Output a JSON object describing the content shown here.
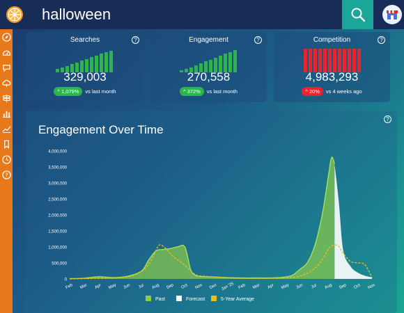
{
  "search": {
    "query": "halloween"
  },
  "icons": {
    "logo": "orange-slice-icon",
    "search": "magnifier-icon",
    "store": "storefront-icon",
    "sidebar": [
      "compass-icon",
      "gauge-icon",
      "chat-bubble-icon",
      "cloud-icon",
      "signpost-icon",
      "bar-chart-icon",
      "line-chart-icon",
      "bookmark-icon",
      "clock-icon",
      "help-icon"
    ]
  },
  "cards": [
    {
      "title": "Searches",
      "value": "329,003",
      "badge": "1,079%",
      "badge_dir": "up",
      "comparison": "vs last month",
      "bar_color": "#2eb54a",
      "bars": [
        0.14,
        0.2,
        0.27,
        0.34,
        0.42,
        0.49,
        0.57,
        0.64,
        0.71,
        0.78,
        0.86,
        0.92
      ]
    },
    {
      "title": "Engagement",
      "value": "270,558",
      "badge": "372%",
      "badge_dir": "up",
      "comparison": "vs last month",
      "bar_color": "#2eb54a",
      "bars": [
        0.1,
        0.16,
        0.22,
        0.3,
        0.38,
        0.46,
        0.54,
        0.62,
        0.7,
        0.78,
        0.86,
        0.94
      ]
    },
    {
      "title": "Competition",
      "value": "4,983,293",
      "badge": "20%",
      "badge_dir": "down",
      "comparison": "vs 4 weeks ago",
      "bar_color": "#e8242d",
      "bars": [
        1,
        1,
        1,
        1,
        1,
        1,
        1,
        1,
        1,
        1,
        1,
        1
      ]
    }
  ],
  "chart_data": {
    "type": "area",
    "title": "Engagement Over Time",
    "categories": [
      "Feb",
      "Mar",
      "Apr",
      "May",
      "Jun",
      "Jul",
      "Aug",
      "Sep",
      "Oct",
      "Nov",
      "Dec",
      "Jan '25",
      "Feb",
      "Mar",
      "Apr",
      "May",
      "Jun",
      "Jul",
      "Aug",
      "Sep",
      "Oct",
      "Nov"
    ],
    "y_ticks": [
      0,
      500000,
      1000000,
      1500000,
      2000000,
      2500000,
      3000000,
      3500000,
      4000000
    ],
    "y_tick_labels": [
      "0",
      "500,000",
      "1,000,000",
      "1,500,000",
      "2,000,000",
      "2,500,000",
      "3,000,000",
      "3,500,000",
      "4,000,000"
    ],
    "ylim": [
      0,
      4000000
    ],
    "grid": false,
    "legend_position": "bottom",
    "series": [
      {
        "name": "Past",
        "color": "#8ccc48",
        "x": [
          0,
          1,
          2,
          3,
          4,
          5,
          5.5,
          6,
          6.5,
          7,
          7.5,
          8,
          8.4,
          8.7,
          9,
          10,
          11,
          12,
          13,
          14,
          14.5,
          15,
          15.5,
          16,
          16.5,
          17,
          17.5,
          17.8,
          18,
          18.2,
          18.4
        ],
        "values": [
          10000,
          20000,
          70000,
          40000,
          80000,
          250000,
          600000,
          880000,
          920000,
          950000,
          1000000,
          1000000,
          300000,
          120000,
          80000,
          60000,
          40000,
          30000,
          30000,
          30000,
          40000,
          60000,
          120000,
          300000,
          500000,
          1000000,
          1900000,
          2700000,
          3300000,
          3800000,
          3600000
        ]
      },
      {
        "name": "Forecast",
        "color": "#ffffff",
        "x": [
          18.4,
          18.7,
          19,
          19.5,
          20,
          20.5,
          21
        ],
        "values": [
          3600000,
          2400000,
          900000,
          400000,
          200000,
          100000,
          50000
        ]
      },
      {
        "name": "5-Year Average",
        "color": "#e6c020",
        "x": [
          0,
          2,
          3.5,
          4.5,
          5.3,
          5.8,
          6.2,
          6.6,
          7.2,
          7.8,
          8.3,
          8.8,
          9.5,
          11,
          12,
          14,
          15,
          15.6,
          16.2,
          16.8,
          17.3,
          17.7,
          18.1,
          18.6,
          19,
          19.5,
          20,
          20.5,
          21
        ],
        "values": [
          0,
          20000,
          40000,
          120000,
          350000,
          700000,
          1050000,
          980000,
          700000,
          500000,
          300000,
          120000,
          80000,
          40000,
          20000,
          20000,
          30000,
          50000,
          120000,
          250000,
          450000,
          700000,
          1000000,
          1050000,
          800000,
          550000,
          500000,
          450000,
          50000
        ]
      }
    ]
  }
}
